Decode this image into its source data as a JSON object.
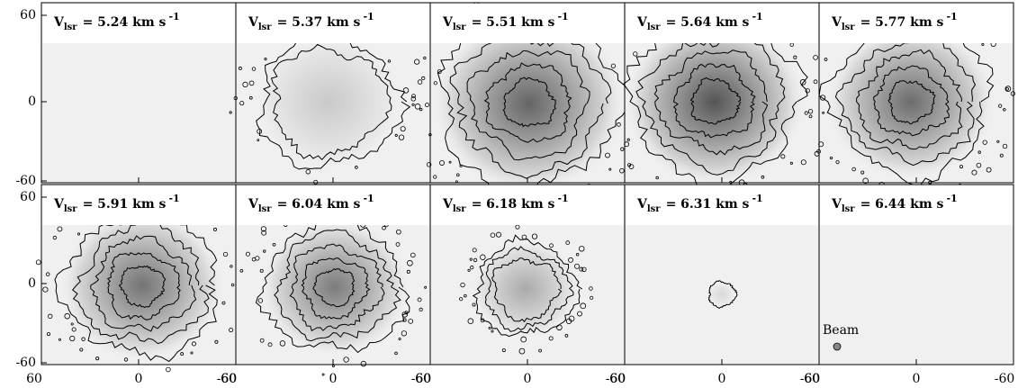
{
  "figure": {
    "panels": [
      {
        "v": "V",
        "sub": "lsr",
        "text": "= 5.24 km s",
        "sup": "-1"
      },
      {
        "v": "V",
        "sub": "lsr",
        "text": "= 5.37 km s",
        "sup": "-1"
      },
      {
        "v": "V",
        "sub": "lsr",
        "text": "= 5.51 km s",
        "sup": "-1"
      },
      {
        "v": "V",
        "sub": "lsr",
        "text": "= 5.64 km s",
        "sup": "-1"
      },
      {
        "v": "V",
        "sub": "lsr",
        "text": "= 5.77 km s",
        "sup": "-1"
      },
      {
        "v": "V",
        "sub": "lsr",
        "text": "= 5.91 km s",
        "sup": "-1"
      },
      {
        "v": "V",
        "sub": "lsr",
        "text": "= 6.04 km s",
        "sup": "-1"
      },
      {
        "v": "V",
        "sub": "lsr",
        "text": "= 6.18 km s",
        "sup": "-1"
      },
      {
        "v": "V",
        "sub": "lsr",
        "text": "= 6.31 km s",
        "sup": "-1"
      },
      {
        "v": "V",
        "sub": "lsr",
        "text": "= 6.44 km s",
        "sup": "-1"
      }
    ],
    "x_tick_labels": [
      "60",
      "0",
      "-60"
    ],
    "y_tick_labels": [
      "60",
      "0",
      "-60"
    ],
    "beam_label": "Beam"
  }
}
